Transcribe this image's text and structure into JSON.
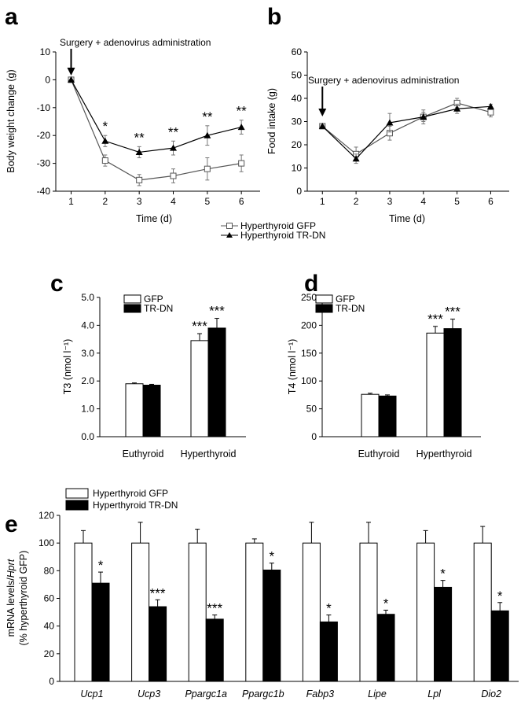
{
  "chart_data": [
    {
      "panel": "a",
      "type": "line",
      "ylabel": "Body weight change (g)",
      "xlabel": "Time (d)",
      "x": [
        1,
        2,
        3,
        4,
        5,
        6
      ],
      "xlim": [
        0.55,
        6.55
      ],
      "ylim": [
        -40,
        10
      ],
      "yticks": [
        10,
        0,
        -10,
        -20,
        -30,
        -40
      ],
      "annotation": "Surgery + adenovirus administration",
      "series": [
        {
          "name": "Hyperthyroid GFP",
          "marker": "square-open",
          "values": [
            0,
            -29,
            -36,
            -34.5,
            -32,
            -30
          ],
          "errors": [
            0,
            2,
            2,
            2.5,
            4,
            3
          ]
        },
        {
          "name": "Hyperthyroid TR-DN",
          "marker": "triangle-filled",
          "values": [
            0,
            -22,
            -26,
            -24.5,
            -20,
            -17
          ],
          "errors": [
            0,
            2,
            2,
            2.5,
            3.5,
            2.5
          ]
        }
      ],
      "significance": [
        "",
        "*",
        "**",
        "**",
        "**",
        "**"
      ],
      "legend": [
        "Hyperthyroid GFP",
        "Hyperthyroid TR-DN"
      ]
    },
    {
      "panel": "b",
      "type": "line",
      "ylabel": "Food intake (g)",
      "xlabel": "Time (d)",
      "x": [
        1,
        2,
        3,
        4,
        5,
        6
      ],
      "xlim": [
        0.55,
        6.55
      ],
      "ylim": [
        0,
        60
      ],
      "yticks": [
        60,
        50,
        40,
        30,
        20,
        10,
        0
      ],
      "annotation": "Surgery + adenovirus administration",
      "series": [
        {
          "name": "Hyperthyroid GFP",
          "marker": "square-open",
          "values": [
            28,
            16,
            25,
            32,
            38,
            34
          ],
          "errors": [
            0.5,
            3,
            3,
            2,
            2,
            2
          ]
        },
        {
          "name": "Hyperthyroid TR-DN",
          "marker": "triangle-filled",
          "values": [
            28,
            14,
            29.5,
            32,
            35.5,
            36.5
          ],
          "errors": [
            0.5,
            2,
            4,
            3,
            2,
            1
          ]
        }
      ]
    },
    {
      "panel": "c",
      "type": "bar",
      "ylabel": "T3 (nmol l⁻¹)",
      "categories": [
        "Euthyroid",
        "Hyperthyroid"
      ],
      "ylim": [
        0,
        5
      ],
      "yticks": [
        "5.0",
        "4.0",
        "3.0",
        "2.0",
        "1.0",
        "0.0"
      ],
      "series": [
        {
          "name": "GFP",
          "values": [
            1.9,
            3.45
          ],
          "errors": [
            0.03,
            0.25
          ]
        },
        {
          "name": "TR-DN",
          "values": [
            1.85,
            3.9
          ],
          "errors": [
            0.03,
            0.35
          ]
        }
      ],
      "significance": [
        [
          "",
          ""
        ],
        [
          "***",
          "***"
        ]
      ],
      "legend": [
        "GFP",
        "TR-DN"
      ]
    },
    {
      "panel": "d",
      "type": "bar",
      "ylabel": "T4 (nmol l⁻¹)",
      "categories": [
        "Euthyroid",
        "Hyperthyroid"
      ],
      "ylim": [
        0,
        250
      ],
      "yticks": [
        "250",
        "200",
        "150",
        "100",
        "50",
        "0"
      ],
      "series": [
        {
          "name": "GFP",
          "values": [
            76,
            186
          ],
          "errors": [
            2,
            12
          ]
        },
        {
          "name": "TR-DN",
          "values": [
            73,
            194
          ],
          "errors": [
            2,
            17
          ]
        }
      ],
      "significance": [
        [
          "",
          ""
        ],
        [
          "***",
          "***"
        ]
      ],
      "legend": [
        "GFP",
        "TR-DN"
      ]
    },
    {
      "panel": "e",
      "type": "bar",
      "ylabel_line1": "mRNA levels/",
      "ylabel_italic": "Hprt",
      "ylabel_line2": "(% hyperthyroid GFP)",
      "categories": [
        "Ucp1",
        "Ucp3",
        "Ppargc1a",
        "Ppargc1b",
        "Fabp3",
        "Lipe",
        "Lpl",
        "Dio2"
      ],
      "ylim": [
        0,
        120
      ],
      "yticks": [
        "120",
        "100",
        "80",
        "60",
        "40",
        "20",
        "0"
      ],
      "series": [
        {
          "name": "Hyperthyroid GFP",
          "values": [
            100,
            100,
            100,
            100,
            100,
            100,
            100,
            100
          ],
          "errors": [
            9,
            15,
            10,
            3,
            15,
            15,
            9,
            12
          ]
        },
        {
          "name": "Hyperthyroid TR-DN",
          "values": [
            71,
            54,
            45,
            80.5,
            43,
            48.5,
            68,
            51
          ],
          "errors": [
            8,
            5,
            3,
            5,
            5,
            3,
            5,
            6
          ]
        }
      ],
      "significance": [
        "*",
        "***",
        "***",
        "*",
        "*",
        "*",
        "*",
        "*"
      ],
      "legend": [
        "Hyperthyroid GFP",
        "Hyperthyroid TR-DN"
      ]
    }
  ]
}
